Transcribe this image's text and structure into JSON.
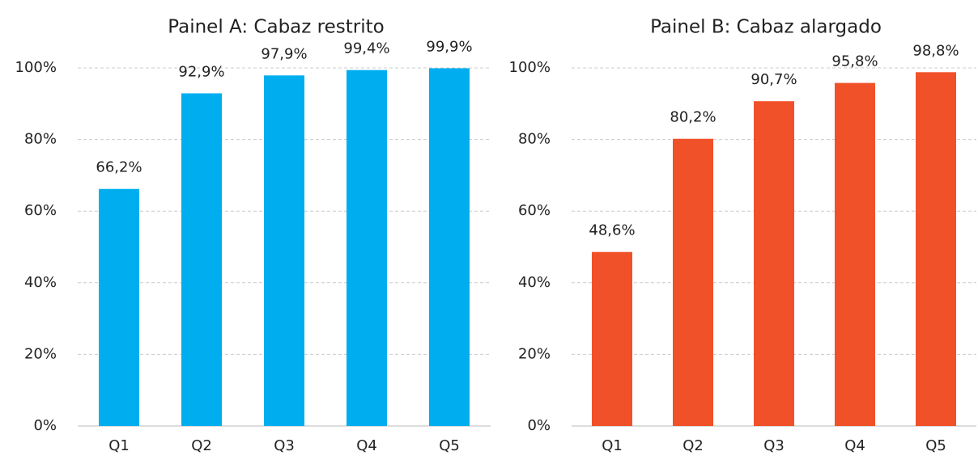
{
  "chart_data": [
    {
      "type": "bar",
      "title": "Painel A: Cabaz restrito",
      "categories": [
        "Q1",
        "Q2",
        "Q3",
        "Q4",
        "Q5"
      ],
      "values": [
        66.2,
        92.9,
        97.9,
        99.4,
        99.9
      ],
      "value_labels": [
        "66,2%",
        "92,9%",
        "97,9%",
        "99,4%",
        "99,9%"
      ],
      "color": "#00aeef",
      "ylim": [
        0,
        100
      ],
      "yticks": [
        {
          "value": 0,
          "label": "0%"
        },
        {
          "value": 20,
          "label": "20%"
        },
        {
          "value": 40,
          "label": "40%"
        },
        {
          "value": 60,
          "label": "60%"
        },
        {
          "value": 80,
          "label": "80%"
        },
        {
          "value": 100,
          "label": "100%"
        }
      ],
      "grid": true
    },
    {
      "type": "bar",
      "title": "Painel B: Cabaz alargado",
      "categories": [
        "Q1",
        "Q2",
        "Q3",
        "Q4",
        "Q5"
      ],
      "values": [
        48.6,
        80.2,
        90.7,
        95.8,
        98.8
      ],
      "value_labels": [
        "48,6%",
        "80,2%",
        "90,7%",
        "95,8%",
        "98,8%"
      ],
      "color": "#f15129",
      "ylim": [
        0,
        100
      ],
      "yticks": [
        {
          "value": 0,
          "label": "0%"
        },
        {
          "value": 20,
          "label": "20%"
        },
        {
          "value": 40,
          "label": "40%"
        },
        {
          "value": 60,
          "label": "60%"
        },
        {
          "value": 80,
          "label": "80%"
        },
        {
          "value": 100,
          "label": "100%"
        }
      ],
      "grid": true
    }
  ]
}
